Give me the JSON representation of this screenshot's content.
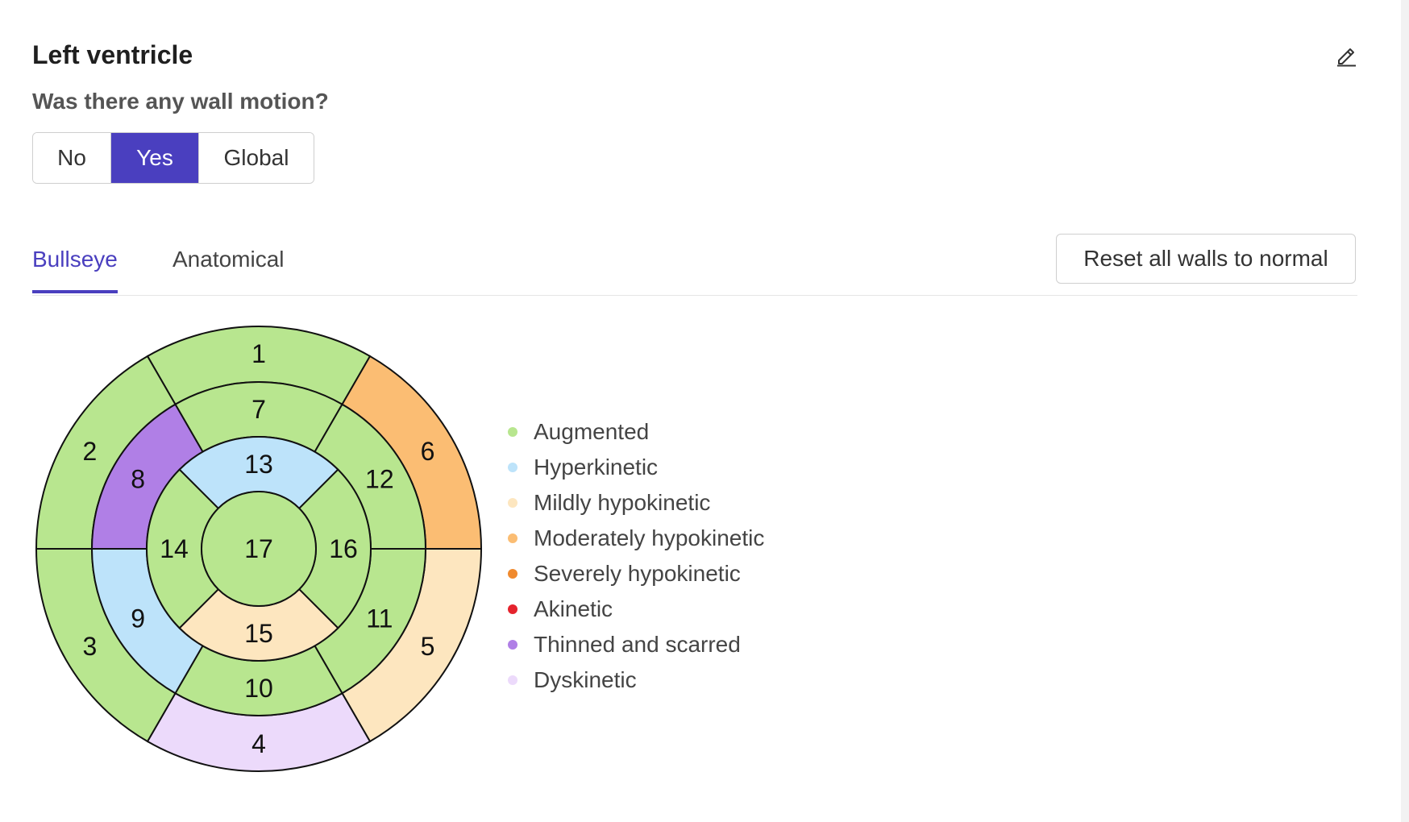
{
  "header": {
    "title": "Left ventricle"
  },
  "question": {
    "text": "Was there any wall motion?"
  },
  "wall_motion_options": {
    "selected": "Yes",
    "options": [
      {
        "label": "No"
      },
      {
        "label": "Yes"
      },
      {
        "label": "Global"
      }
    ]
  },
  "tabs": {
    "active": "Bullseye",
    "items": [
      {
        "label": "Bullseye"
      },
      {
        "label": "Anatomical"
      }
    ]
  },
  "reset_button": {
    "label": "Reset all walls to normal"
  },
  "legend": [
    {
      "label": "Augmented",
      "color": "#b8e68f"
    },
    {
      "label": "Hyperkinetic",
      "color": "#bde3fa"
    },
    {
      "label": "Mildly hypokinetic",
      "color": "#fde6bf"
    },
    {
      "label": "Moderately hypokinetic",
      "color": "#fbbd73"
    },
    {
      "label": "Severely hypokinetic",
      "color": "#f08a2e"
    },
    {
      "label": "Akinetic",
      "color": "#e5232d"
    },
    {
      "label": "Thinned and scarred",
      "color": "#b07fe6"
    },
    {
      "label": "Dyskinetic",
      "color": "#ecdafb"
    }
  ],
  "segments": [
    {
      "id": "1",
      "status": "Augmented"
    },
    {
      "id": "2",
      "status": "Augmented"
    },
    {
      "id": "3",
      "status": "Augmented"
    },
    {
      "id": "4",
      "status": "Dyskinetic"
    },
    {
      "id": "5",
      "status": "Mildly hypokinetic"
    },
    {
      "id": "6",
      "status": "Moderately hypokinetic"
    },
    {
      "id": "7",
      "status": "Augmented"
    },
    {
      "id": "8",
      "status": "Thinned and scarred"
    },
    {
      "id": "9",
      "status": "Hyperkinetic"
    },
    {
      "id": "10",
      "status": "Augmented"
    },
    {
      "id": "11",
      "status": "Augmented"
    },
    {
      "id": "12",
      "status": "Augmented"
    },
    {
      "id": "13",
      "status": "Hyperkinetic"
    },
    {
      "id": "14",
      "status": "Augmented"
    },
    {
      "id": "15",
      "status": "Mildly hypokinetic"
    },
    {
      "id": "16",
      "status": "Augmented"
    },
    {
      "id": "17",
      "status": "Augmented"
    }
  ]
}
